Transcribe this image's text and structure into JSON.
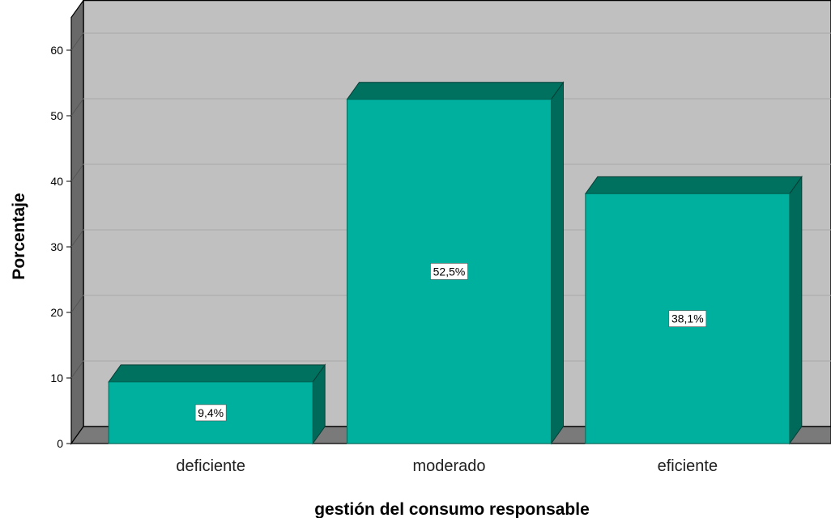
{
  "chart_data": {
    "type": "bar",
    "categories": [
      "deficiente",
      "moderado",
      "eficiente"
    ],
    "values": [
      9.4,
      52.5,
      38.1
    ],
    "data_labels": [
      "9,4%",
      "52,5%",
      "38,1%"
    ],
    "xlabel": "gestión del consumo responsable",
    "ylabel": "Porcentaje",
    "ylim": [
      0,
      65
    ],
    "yticks": [
      0,
      10,
      20,
      30,
      40,
      50,
      60
    ],
    "grid": true,
    "three_d": true,
    "bar_color": "#00b09e",
    "bar_top_color": "#00705f",
    "bar_side_color": "#006a5a",
    "wall_color": "#c0c0c0",
    "floor_color": "#7a7a7a",
    "side_wall_color": "#696969"
  }
}
